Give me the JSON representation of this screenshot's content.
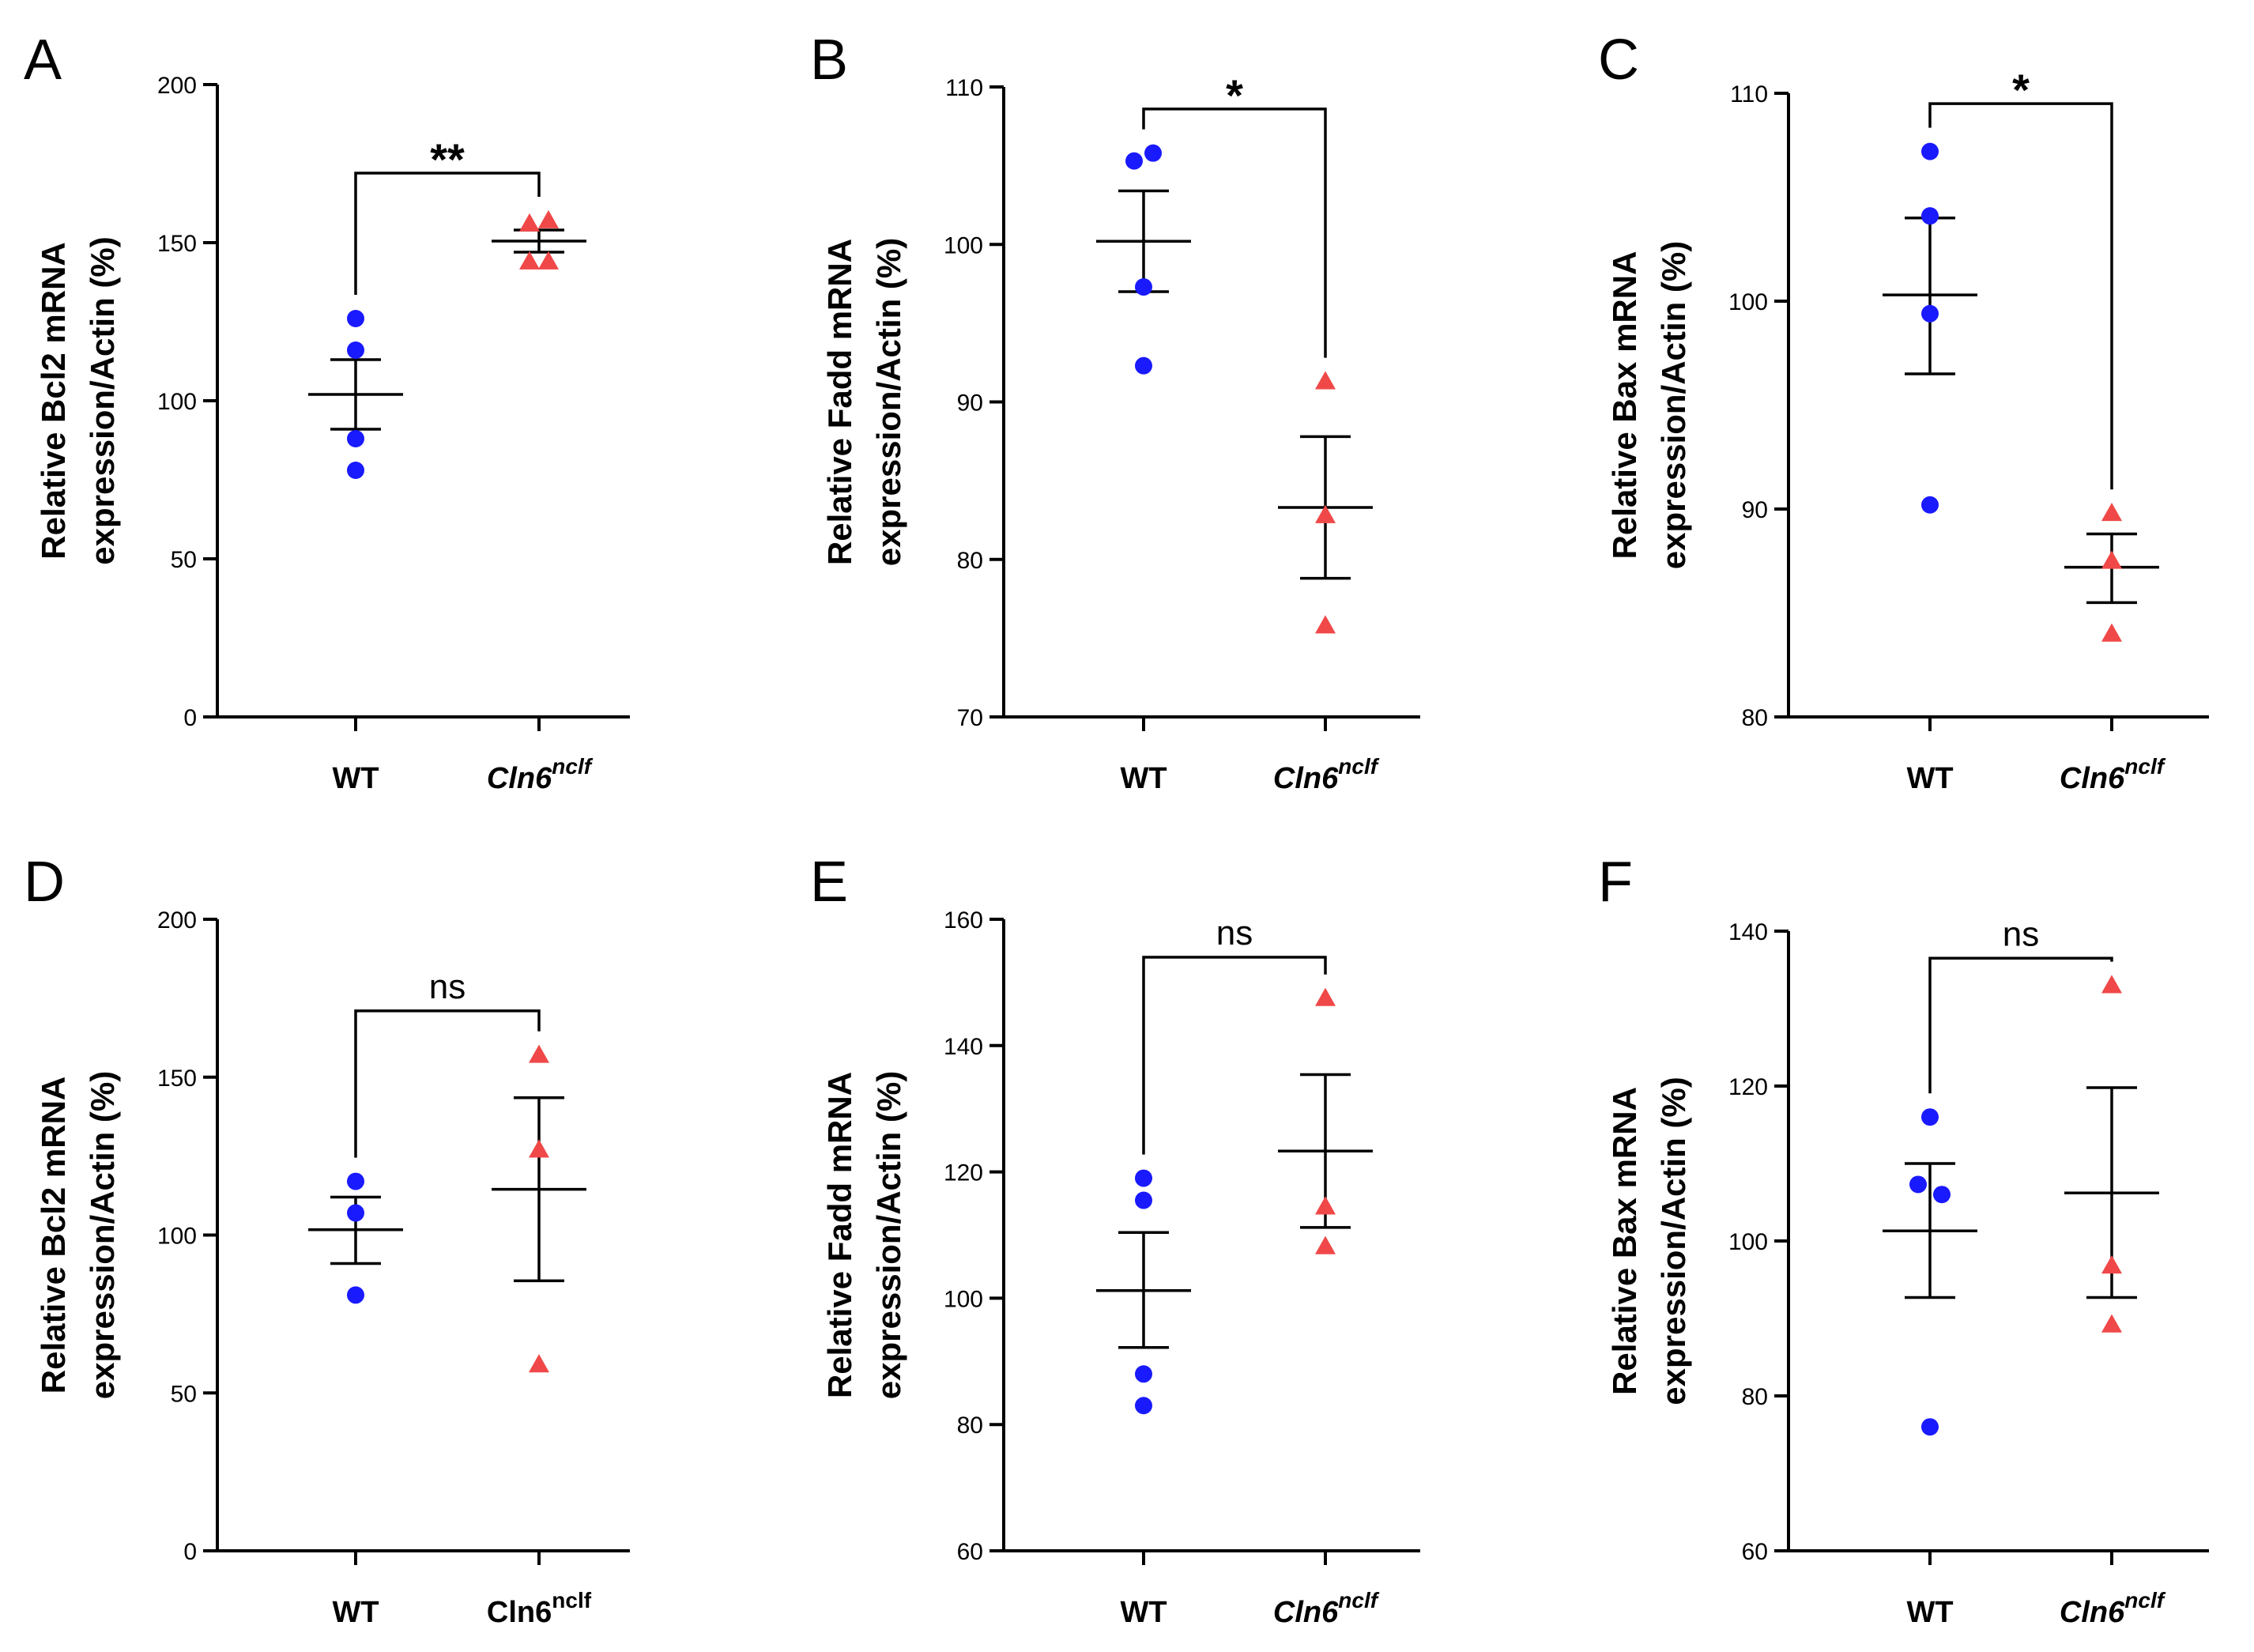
{
  "chart_data": [
    {
      "panel": "A",
      "type": "scatter",
      "ylabel_lines": [
        "Relative Bcl2 mRNA",
        "expression/Actin (%)"
      ],
      "ylim": [
        0,
        200
      ],
      "yticks": [
        0,
        50,
        100,
        150,
        200
      ],
      "categories": [
        {
          "label": "WT",
          "italic": false,
          "sup": ""
        },
        {
          "label": "Cln6",
          "italic": true,
          "sup": "nclf"
        }
      ],
      "series": [
        {
          "name": "WT",
          "marker": "circle",
          "color": "#1a1aff",
          "points": [
            126,
            116,
            88,
            78
          ],
          "jitter": [
            0,
            0,
            0,
            0
          ],
          "mean": 102,
          "sem": [
            91,
            113
          ]
        },
        {
          "name": "Cln6nclf",
          "marker": "triangle",
          "color": "#f04848",
          "points": [
            156,
            157,
            144,
            144
          ],
          "jitter": [
            -12,
            12,
            -12,
            12
          ],
          "mean": 150.5,
          "sem": [
            147,
            154
          ]
        }
      ],
      "significance": {
        "label": "**",
        "bracket_y": 172
      }
    },
    {
      "panel": "B",
      "type": "scatter",
      "ylabel_lines": [
        "Relative Fadd mRNA",
        "expression/Actin (%)"
      ],
      "ylim": [
        70,
        110
      ],
      "yticks": [
        70,
        80,
        90,
        100,
        110
      ],
      "categories": [
        {
          "label": "WT",
          "italic": false,
          "sup": ""
        },
        {
          "label": "Cln6",
          "italic": true,
          "sup": "nclf"
        }
      ],
      "series": [
        {
          "name": "WT",
          "marker": "circle",
          "color": "#1a1aff",
          "points": [
            105.8,
            105.3,
            97.3,
            92.3
          ],
          "jitter": [
            12,
            -12,
            0,
            0
          ],
          "mean": 100.2,
          "sem": [
            97,
            103.4
          ]
        },
        {
          "name": "Cln6nclf",
          "marker": "triangle",
          "color": "#f04848",
          "points": [
            91.3,
            82.8,
            75.8
          ],
          "jitter": [
            0,
            0,
            0
          ],
          "mean": 83.3,
          "sem": [
            78.8,
            87.8
          ]
        }
      ],
      "significance": {
        "label": "*",
        "bracket_y": 108.6
      }
    },
    {
      "panel": "C",
      "type": "scatter",
      "ylabel_lines": [
        "Relative Bax mRNA",
        "expression/Actin (%)"
      ],
      "ylim": [
        80,
        110
      ],
      "yticks": [
        80,
        90,
        100,
        110
      ],
      "categories": [
        {
          "label": "WT",
          "italic": false,
          "sup": ""
        },
        {
          "label": "Cln6",
          "italic": true,
          "sup": "nclf"
        }
      ],
      "series": [
        {
          "name": "WT",
          "marker": "circle",
          "color": "#1a1aff",
          "points": [
            107.2,
            104.1,
            99.4,
            90.2
          ],
          "jitter": [
            0,
            0,
            0,
            0
          ],
          "mean": 100.3,
          "sem": [
            96.5,
            104
          ]
        },
        {
          "name": "Cln6nclf",
          "marker": "triangle",
          "color": "#f04848",
          "points": [
            89.8,
            87.5,
            84
          ],
          "jitter": [
            0,
            0,
            0
          ],
          "mean": 87.2,
          "sem": [
            85.5,
            88.8
          ]
        }
      ],
      "significance": {
        "label": "*",
        "bracket_y": 109.5
      }
    },
    {
      "panel": "D",
      "type": "scatter",
      "ylabel_lines": [
        "Relative Bcl2 mRNA",
        "expression/Actin (%)"
      ],
      "ylim": [
        0,
        200
      ],
      "yticks": [
        0,
        50,
        100,
        150,
        200
      ],
      "categories": [
        {
          "label": "WT",
          "italic": false,
          "sup": ""
        },
        {
          "label": "Cln6",
          "italic": false,
          "sup": "nclf"
        }
      ],
      "series": [
        {
          "name": "WT",
          "marker": "circle",
          "color": "#1a1aff",
          "points": [
            117,
            107,
            81
          ],
          "jitter": [
            0,
            0,
            0
          ],
          "mean": 101.7,
          "sem": [
            91,
            112
          ]
        },
        {
          "name": "Cln6nclf",
          "marker": "triangle",
          "color": "#f04848",
          "points": [
            157,
            127,
            59
          ],
          "jitter": [
            0,
            0,
            0
          ],
          "mean": 114.5,
          "sem": [
            85.5,
            143.5
          ]
        }
      ],
      "significance": {
        "label": "ns",
        "bracket_y": 171
      }
    },
    {
      "panel": "E",
      "type": "scatter",
      "ylabel_lines": [
        "Relative Fadd mRNA",
        "expression/Actin (%)"
      ],
      "ylim": [
        60,
        160
      ],
      "yticks": [
        60,
        80,
        100,
        120,
        140,
        160
      ],
      "categories": [
        {
          "label": "WT",
          "italic": false,
          "sup": ""
        },
        {
          "label": "Cln6",
          "italic": true,
          "sup": "nclf"
        }
      ],
      "series": [
        {
          "name": "WT",
          "marker": "circle",
          "color": "#1a1aff",
          "points": [
            119,
            115.5,
            88,
            83
          ],
          "jitter": [
            0,
            0,
            0,
            0
          ],
          "mean": 101.2,
          "sem": [
            92.2,
            110.4
          ]
        },
        {
          "name": "Cln6nclf",
          "marker": "triangle",
          "color": "#f04848",
          "points": [
            147.5,
            114.5,
            108.2
          ],
          "jitter": [
            0,
            0,
            0
          ],
          "mean": 123.3,
          "sem": [
            111.2,
            135.4
          ]
        }
      ],
      "significance": {
        "label": "ns",
        "bracket_y": 154
      }
    },
    {
      "panel": "F",
      "type": "scatter",
      "ylabel_lines": [
        "Relative Bax mRNA",
        "expression/Actin (%)"
      ],
      "ylim": [
        60,
        140
      ],
      "yticks": [
        60,
        80,
        100,
        120,
        140
      ],
      "categories": [
        {
          "label": "WT",
          "italic": false,
          "sup": ""
        },
        {
          "label": "Cln6",
          "italic": true,
          "sup": "nclf"
        }
      ],
      "series": [
        {
          "name": "WT",
          "marker": "circle",
          "color": "#1a1aff",
          "points": [
            116,
            107.3,
            106,
            76
          ],
          "jitter": [
            0,
            -15,
            15,
            0
          ],
          "mean": 101.3,
          "sem": [
            92.7,
            110
          ]
        },
        {
          "name": "Cln6nclf",
          "marker": "triangle",
          "color": "#f04848",
          "points": [
            133,
            96.8,
            89.2
          ],
          "jitter": [
            0,
            0,
            0
          ],
          "mean": 106.2,
          "sem": [
            92.7,
            119.8
          ]
        }
      ],
      "significance": {
        "label": "ns",
        "bracket_y": 136.5
      }
    }
  ]
}
